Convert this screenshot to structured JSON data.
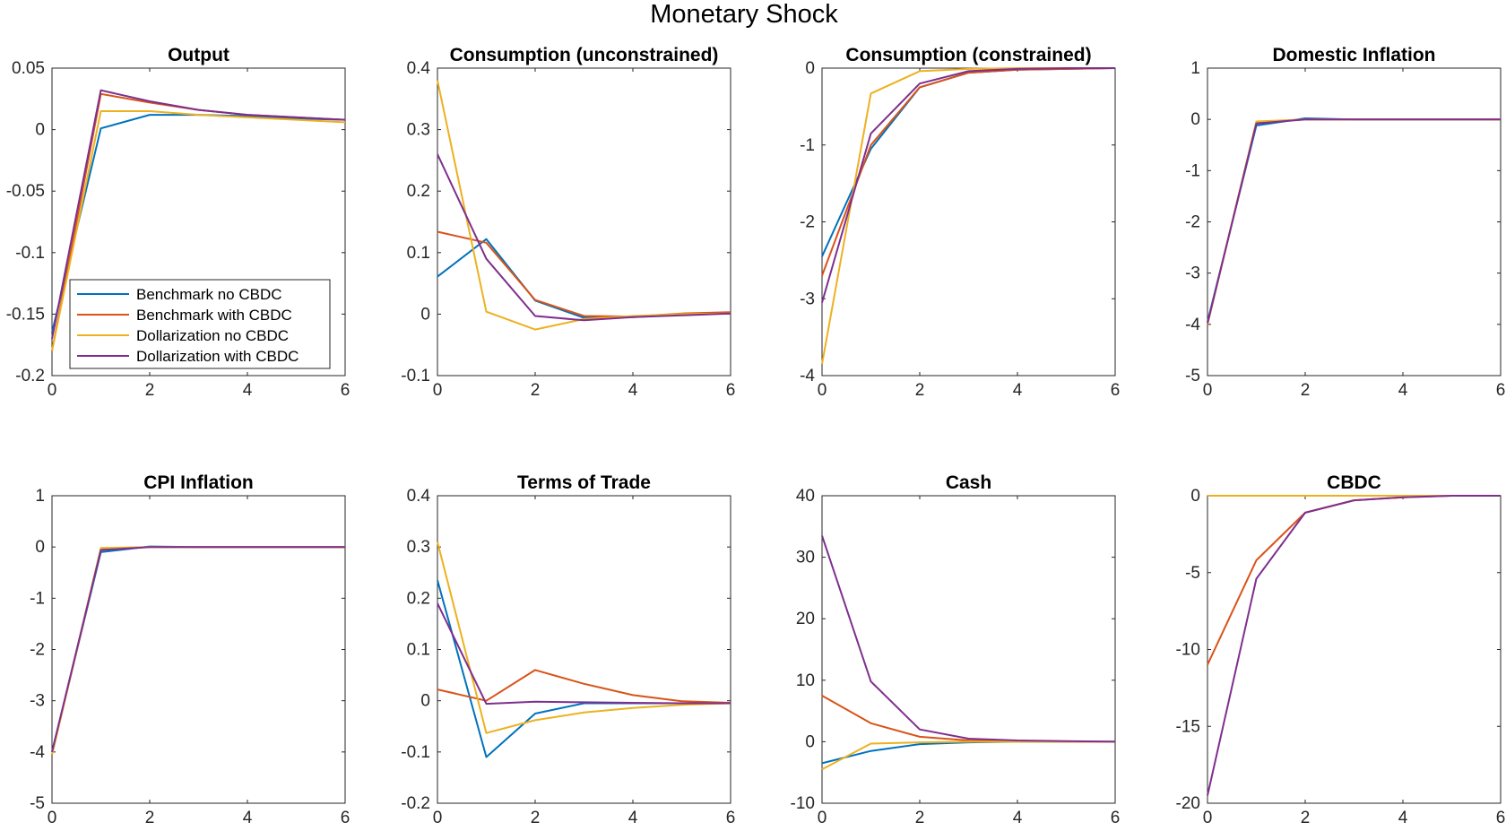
{
  "figure_title": "Monetary Shock",
  "legend_entries": [
    "Benchmark no CBDC",
    "Benchmark with CBDC",
    "Dollarization no CBDC",
    "Dollarization with CBDC"
  ],
  "series_colors": [
    "#0072BD",
    "#D95319",
    "#EDB120",
    "#7E2F8E"
  ],
  "chart_data": [
    {
      "type": "line",
      "title": "Output",
      "x": [
        0,
        1,
        2,
        3,
        4,
        5,
        6
      ],
      "xlim": [
        0,
        6
      ],
      "ylim": [
        -0.2,
        0.05
      ],
      "xticks": [
        0,
        2,
        4,
        6
      ],
      "xtick_labels": [
        "0",
        "2",
        "4",
        "6"
      ],
      "yticks": [
        -0.2,
        -0.15,
        -0.1,
        -0.05,
        0,
        0.05
      ],
      "ytick_labels": [
        "-0.2",
        "-0.15",
        "-0.1",
        "-0.05",
        "0",
        "0.05"
      ],
      "legend": "lower-left",
      "series": [
        {
          "name": "Benchmark no CBDC",
          "values": [
            -0.165,
            0.001,
            0.012,
            0.012,
            0.011,
            0.009,
            0.008
          ]
        },
        {
          "name": "Benchmark with CBDC",
          "values": [
            -0.18,
            0.029,
            0.022,
            0.016,
            0.012,
            0.01,
            0.008
          ]
        },
        {
          "name": "Dollarization no CBDC",
          "values": [
            -0.18,
            0.015,
            0.015,
            0.012,
            0.01,
            0.008,
            0.006
          ]
        },
        {
          "name": "Dollarization with CBDC",
          "values": [
            -0.17,
            0.032,
            0.023,
            0.016,
            0.012,
            0.01,
            0.008
          ]
        }
      ]
    },
    {
      "type": "line",
      "title": "Consumption (unconstrained)",
      "x": [
        0,
        1,
        2,
        3,
        4,
        5,
        6
      ],
      "xlim": [
        0,
        6
      ],
      "ylim": [
        -0.1,
        0.4
      ],
      "xticks": [
        0,
        2,
        4,
        6
      ],
      "xtick_labels": [
        "0",
        "2",
        "4",
        "6"
      ],
      "yticks": [
        -0.1,
        0,
        0.1,
        0.2,
        0.3,
        0.4
      ],
      "ytick_labels": [
        "-0.1",
        "0",
        "0.1",
        "0.2",
        "0.3",
        "0.4"
      ],
      "series": [
        {
          "name": "Benchmark no CBDC",
          "values": [
            0.061,
            0.122,
            0.022,
            -0.006,
            -0.005,
            -0.001,
            0.002
          ]
        },
        {
          "name": "Benchmark with CBDC",
          "values": [
            0.134,
            0.116,
            0.023,
            -0.003,
            -0.004,
            0.001,
            0.003
          ]
        },
        {
          "name": "Dollarization no CBDC",
          "values": [
            0.38,
            0.004,
            -0.025,
            -0.008,
            -0.003,
            0,
            0.001
          ]
        },
        {
          "name": "Dollarization with CBDC",
          "values": [
            0.26,
            0.09,
            -0.003,
            -0.01,
            -0.005,
            -0.002,
            0.001
          ]
        }
      ]
    },
    {
      "type": "line",
      "title": "Consumption (constrained)",
      "x": [
        0,
        1,
        2,
        3,
        4,
        5,
        6
      ],
      "xlim": [
        0,
        6
      ],
      "ylim": [
        -4,
        0
      ],
      "xticks": [
        0,
        2,
        4,
        6
      ],
      "xtick_labels": [
        "0",
        "2",
        "4",
        "6"
      ],
      "yticks": [
        -4,
        -3,
        -2,
        -1,
        0
      ],
      "ytick_labels": [
        "-4",
        "-3",
        "-2",
        "-1",
        "0"
      ],
      "series": [
        {
          "name": "Benchmark no CBDC",
          "values": [
            -2.45,
            -1.05,
            -0.25,
            -0.06,
            -0.02,
            -0.01,
            0
          ]
        },
        {
          "name": "Benchmark with CBDC",
          "values": [
            -2.7,
            -1.0,
            -0.25,
            -0.06,
            -0.02,
            -0.01,
            0
          ]
        },
        {
          "name": "Dollarization no CBDC",
          "values": [
            -3.85,
            -0.33,
            -0.04,
            -0.01,
            0,
            0,
            0
          ]
        },
        {
          "name": "Dollarization with CBDC",
          "values": [
            -3.05,
            -0.85,
            -0.2,
            -0.04,
            -0.01,
            0,
            0
          ]
        }
      ]
    },
    {
      "type": "line",
      "title": "Domestic Inflation",
      "x": [
        0,
        1,
        2,
        3,
        4,
        5,
        6
      ],
      "xlim": [
        0,
        6
      ],
      "ylim": [
        -5,
        1
      ],
      "xticks": [
        0,
        2,
        4,
        6
      ],
      "xtick_labels": [
        "0",
        "2",
        "4",
        "6"
      ],
      "yticks": [
        -5,
        -4,
        -3,
        -2,
        -1,
        0,
        1
      ],
      "ytick_labels": [
        "-5",
        "-4",
        "-3",
        "-2",
        "-1",
        "0",
        "1"
      ],
      "series": [
        {
          "name": "Benchmark no CBDC",
          "values": [
            -3.95,
            -0.12,
            0.02,
            0,
            0,
            0,
            0
          ]
        },
        {
          "name": "Benchmark with CBDC",
          "values": [
            -4.0,
            -0.06,
            0,
            0,
            0,
            0,
            0
          ]
        },
        {
          "name": "Dollarization no CBDC",
          "values": [
            -4.0,
            -0.04,
            0,
            0,
            0,
            0,
            0
          ]
        },
        {
          "name": "Dollarization with CBDC",
          "values": [
            -3.98,
            -0.08,
            0,
            0,
            0,
            0,
            0
          ]
        }
      ]
    },
    {
      "type": "line",
      "title": "CPI Inflation",
      "x": [
        0,
        1,
        2,
        3,
        4,
        5,
        6
      ],
      "xlim": [
        0,
        6
      ],
      "ylim": [
        -5,
        1
      ],
      "xticks": [
        0,
        2,
        4,
        6
      ],
      "xtick_labels": [
        "0",
        "2",
        "4",
        "6"
      ],
      "yticks": [
        -5,
        -4,
        -3,
        -2,
        -1,
        0,
        1
      ],
      "ytick_labels": [
        "-5",
        "-4",
        "-3",
        "-2",
        "-1",
        "0",
        "1"
      ],
      "series": [
        {
          "name": "Benchmark no CBDC",
          "values": [
            -4.0,
            -0.1,
            0.01,
            0,
            0,
            0,
            0
          ]
        },
        {
          "name": "Benchmark with CBDC",
          "values": [
            -4.05,
            -0.05,
            0,
            0,
            0,
            0,
            0
          ]
        },
        {
          "name": "Dollarization no CBDC",
          "values": [
            -4.05,
            -0.02,
            0,
            0,
            0,
            0,
            0
          ]
        },
        {
          "name": "Dollarization with CBDC",
          "values": [
            -4.0,
            -0.06,
            0,
            0,
            0,
            0,
            0
          ]
        }
      ]
    },
    {
      "type": "line",
      "title": "Terms of Trade",
      "x": [
        0,
        1,
        2,
        3,
        4,
        5,
        6
      ],
      "xlim": [
        0,
        6
      ],
      "ylim": [
        -0.2,
        0.4
      ],
      "xticks": [
        0,
        2,
        4,
        6
      ],
      "xtick_labels": [
        "0",
        "2",
        "4",
        "6"
      ],
      "yticks": [
        -0.2,
        -0.1,
        0,
        0.1,
        0.2,
        0.3,
        0.4
      ],
      "ytick_labels": [
        "-0.2",
        "-0.1",
        "0",
        "0.1",
        "0.2",
        "0.3",
        "0.4"
      ],
      "series": [
        {
          "name": "Benchmark no CBDC",
          "values": [
            0.235,
            -0.11,
            -0.025,
            -0.005,
            -0.005,
            -0.005,
            -0.005
          ]
        },
        {
          "name": "Benchmark with CBDC",
          "values": [
            0.022,
            0.0,
            0.06,
            0.033,
            0.011,
            -0.001,
            -0.004
          ]
        },
        {
          "name": "Dollarization no CBDC",
          "values": [
            0.31,
            -0.063,
            -0.038,
            -0.023,
            -0.014,
            -0.008,
            -0.005
          ]
        },
        {
          "name": "Dollarization with CBDC",
          "values": [
            0.19,
            -0.006,
            -0.002,
            -0.003,
            -0.004,
            -0.005,
            -0.005
          ]
        }
      ]
    },
    {
      "type": "line",
      "title": "Cash",
      "x": [
        0,
        1,
        2,
        3,
        4,
        5,
        6
      ],
      "xlim": [
        0,
        6
      ],
      "ylim": [
        -10,
        40
      ],
      "xticks": [
        0,
        2,
        4,
        6
      ],
      "xtick_labels": [
        "0",
        "2",
        "4",
        "6"
      ],
      "yticks": [
        -10,
        0,
        10,
        20,
        30,
        40
      ],
      "ytick_labels": [
        "-10",
        "0",
        "10",
        "20",
        "30",
        "40"
      ],
      "series": [
        {
          "name": "Benchmark no CBDC",
          "values": [
            -3.5,
            -1.5,
            -0.4,
            -0.1,
            0,
            0,
            0
          ]
        },
        {
          "name": "Benchmark with CBDC",
          "values": [
            7.5,
            3.0,
            0.8,
            0.2,
            0.1,
            0,
            0
          ]
        },
        {
          "name": "Dollarization no CBDC",
          "values": [
            -4.5,
            -0.3,
            -0.1,
            0,
            0,
            0,
            0
          ]
        },
        {
          "name": "Dollarization with CBDC",
          "values": [
            33.5,
            9.8,
            2.0,
            0.5,
            0.2,
            0.1,
            0
          ]
        }
      ]
    },
    {
      "type": "line",
      "title": "CBDC",
      "x": [
        0,
        1,
        2,
        3,
        4,
        5,
        6
      ],
      "xlim": [
        0,
        6
      ],
      "ylim": [
        -20,
        0
      ],
      "xticks": [
        0,
        2,
        4,
        6
      ],
      "xtick_labels": [
        "0",
        "2",
        "4",
        "6"
      ],
      "yticks": [
        -20,
        -15,
        -10,
        -5,
        0
      ],
      "ytick_labels": [
        "-20",
        "-15",
        "-10",
        "-5",
        "0"
      ],
      "series": [
        {
          "name": "Benchmark no CBDC",
          "values": [
            0,
            0,
            0,
            0,
            0,
            0,
            0
          ]
        },
        {
          "name": "Benchmark with CBDC",
          "values": [
            -11.0,
            -4.2,
            -1.1,
            -0.3,
            -0.1,
            0,
            0
          ]
        },
        {
          "name": "Dollarization no CBDC",
          "values": [
            0,
            0,
            0,
            0,
            0,
            0,
            0
          ]
        },
        {
          "name": "Dollarization with CBDC",
          "values": [
            -19.5,
            -5.4,
            -1.1,
            -0.3,
            -0.1,
            0,
            0
          ]
        }
      ]
    }
  ]
}
